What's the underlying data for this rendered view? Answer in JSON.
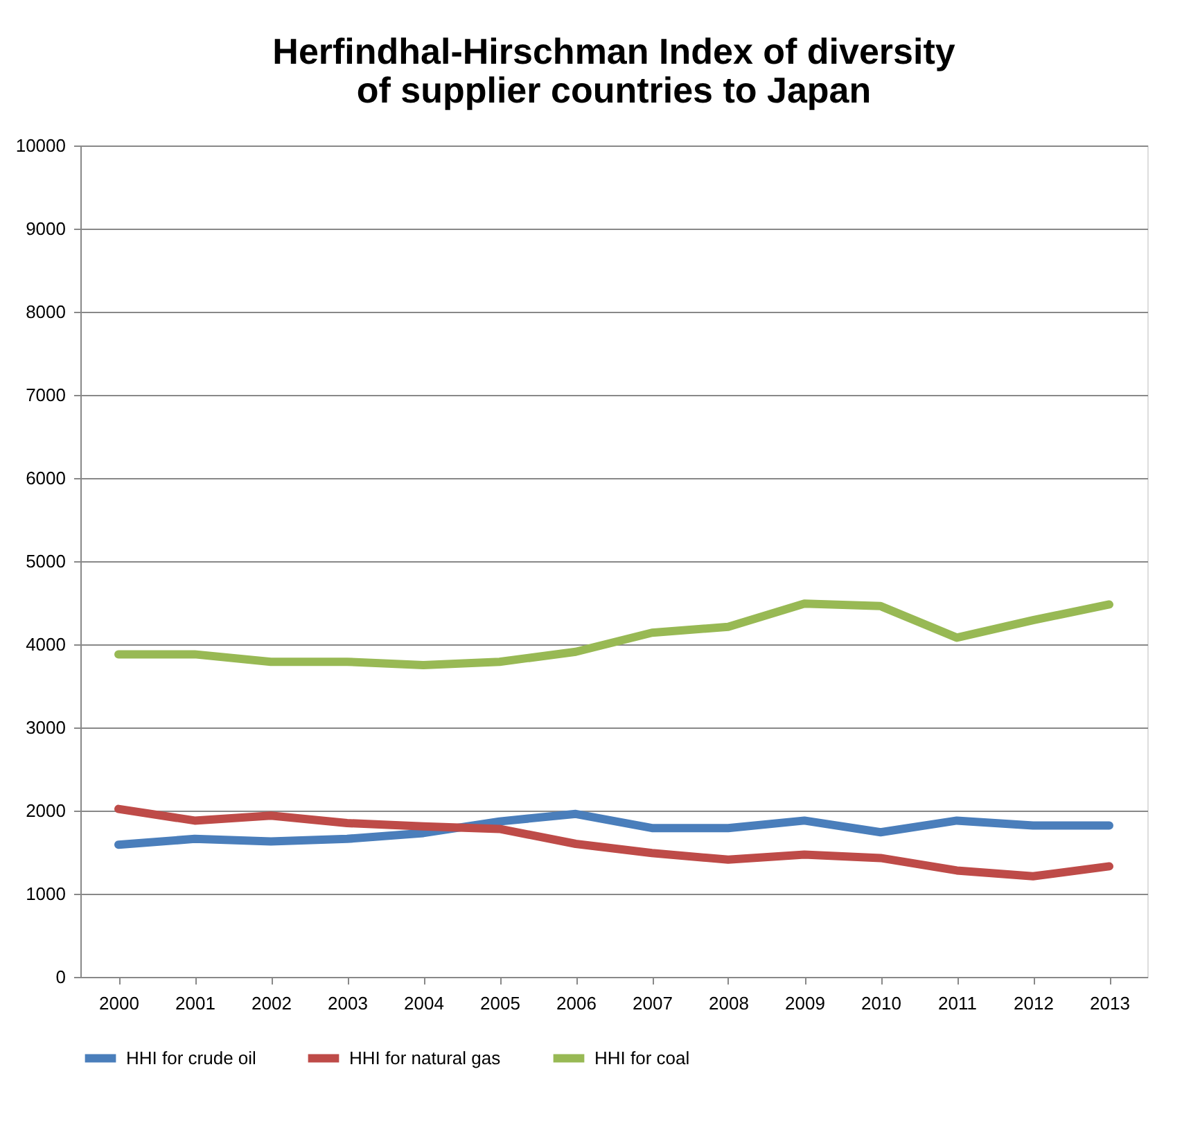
{
  "chart_data": {
    "type": "line",
    "title": "Herfindhal-Hirschman Index of diversity\nof supplier countries to Japan",
    "categories": [
      "2000",
      "2001",
      "2002",
      "2003",
      "2004",
      "2005",
      "2006",
      "2007",
      "2008",
      "2009",
      "2010",
      "2011",
      "2012",
      "2013"
    ],
    "series": [
      {
        "name": "HHI for crude oil",
        "color": "#4a7ebb",
        "values": [
          1590,
          1660,
          1630,
          1660,
          1730,
          1870,
          1960,
          1790,
          1790,
          1880,
          1740,
          1880,
          1820,
          1820
        ]
      },
      {
        "name": "HHI for natural gas",
        "color": "#be4b48",
        "values": [
          2020,
          1880,
          1940,
          1850,
          1810,
          1780,
          1600,
          1490,
          1410,
          1470,
          1430,
          1280,
          1210,
          1330
        ]
      },
      {
        "name": "HHI for coal",
        "color": "#98b954",
        "values": [
          3880,
          3880,
          3790,
          3790,
          3750,
          3790,
          3910,
          4140,
          4210,
          4490,
          4460,
          4080,
          4290,
          4480
        ]
      }
    ],
    "ylim": [
      0,
      10000
    ],
    "yticks": [
      0,
      1000,
      2000,
      3000,
      4000,
      5000,
      6000,
      7000,
      8000,
      9000,
      10000
    ],
    "grid": "y",
    "legend": "bottom",
    "marker": "none",
    "line_style": "solid"
  }
}
